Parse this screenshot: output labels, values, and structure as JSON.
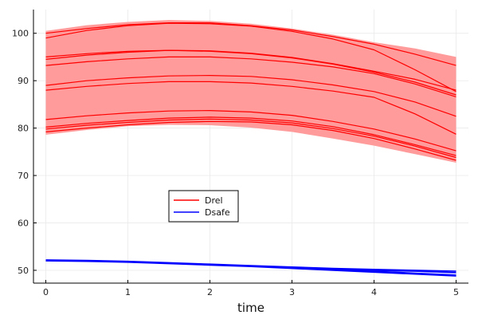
{
  "chart_data": {
    "type": "line",
    "xlabel": "time",
    "ylabel": "",
    "xlim": [
      -0.15,
      5.15
    ],
    "ylim": [
      47.3,
      105
    ],
    "xticks": [
      "0",
      "1",
      "2",
      "3",
      "4",
      "5"
    ],
    "yticks": [
      "50",
      "60",
      "70",
      "80",
      "90",
      "100"
    ],
    "grid": true,
    "legend_position": "middle-left",
    "band": {
      "name": "Drel range",
      "color": "#ff9b9b",
      "x": [
        0,
        0.5,
        1,
        1.5,
        2,
        2.5,
        3,
        3.5,
        4,
        4.5,
        5
      ],
      "upper": [
        100.5,
        101.7,
        102.4,
        102.8,
        102.6,
        102.0,
        101.0,
        99.7,
        98.1,
        96.8,
        95.0
      ],
      "lower": [
        78.6,
        79.6,
        80.4,
        80.7,
        80.6,
        80.1,
        79.2,
        77.8,
        76.3,
        74.5,
        72.7
      ]
    },
    "series": [
      {
        "name": "Drel",
        "color": "#ff0000",
        "values": [
          99.0,
          100.6,
          101.6,
          102.1,
          102.0,
          101.5,
          100.4,
          98.8,
          96.5,
          92.3,
          87.7
        ]
      },
      {
        "color": "#ff0000",
        "values": [
          100.0,
          101.0,
          101.8,
          102.2,
          102.2,
          101.6,
          100.7,
          99.3,
          97.7,
          95.6,
          93.2
        ]
      },
      {
        "color": "#ff0000",
        "values": [
          95.0,
          95.7,
          96.2,
          96.4,
          96.2,
          95.7,
          94.8,
          93.5,
          91.8,
          89.7,
          87.0
        ]
      },
      {
        "color": "#ff0000",
        "values": [
          94.5,
          95.4,
          96.0,
          96.4,
          96.3,
          95.8,
          94.9,
          93.6,
          92.0,
          90.3,
          88.0
        ]
      },
      {
        "color": "#ff0000",
        "values": [
          93.2,
          94.0,
          94.6,
          95.0,
          95.0,
          94.6,
          93.9,
          92.9,
          91.5,
          89.3,
          86.6
        ]
      },
      {
        "color": "#ff0000",
        "values": [
          89.0,
          90.0,
          90.6,
          91.0,
          91.1,
          90.9,
          90.2,
          89.1,
          87.7,
          85.5,
          82.5
        ]
      },
      {
        "color": "#ff0000",
        "values": [
          88.0,
          88.8,
          89.4,
          89.8,
          89.8,
          89.5,
          88.8,
          87.8,
          86.5,
          83.0,
          78.7
        ]
      },
      {
        "color": "#ff0000",
        "values": [
          81.8,
          82.6,
          83.2,
          83.6,
          83.7,
          83.4,
          82.7,
          81.4,
          79.8,
          77.7,
          75.2
        ]
      },
      {
        "color": "#ff0000",
        "values": [
          80.2,
          81.0,
          81.6,
          82.1,
          82.3,
          82.1,
          81.5,
          80.3,
          78.6,
          76.5,
          74.2
        ]
      },
      {
        "color": "#ff0000",
        "values": [
          79.8,
          80.6,
          81.2,
          81.7,
          81.9,
          81.7,
          81.1,
          79.9,
          78.3,
          76.2,
          73.8
        ]
      },
      {
        "color": "#ff0000",
        "values": [
          79.2,
          80.0,
          80.7,
          81.2,
          81.4,
          81.3,
          80.7,
          79.5,
          77.8,
          75.6,
          73.2
        ]
      },
      {
        "name": "Dsafe",
        "color": "#0000ff",
        "values": [
          52.1,
          52.0,
          51.8,
          51.5,
          51.2,
          50.9,
          50.6,
          50.3,
          50.0,
          49.8,
          49.5
        ]
      },
      {
        "color": "#0000ff",
        "values": [
          52.2,
          52.1,
          51.9,
          51.6,
          51.3,
          51.0,
          50.7,
          50.4,
          50.2,
          50.0,
          49.8
        ]
      },
      {
        "color": "#0000ff",
        "values": [
          52.0,
          51.9,
          51.7,
          51.4,
          51.1,
          50.8,
          50.4,
          50.0,
          49.6,
          49.2,
          48.8
        ]
      },
      {
        "color": "#0000ff",
        "values": [
          52.1,
          52.0,
          51.8,
          51.5,
          51.2,
          50.9,
          50.5,
          50.2,
          49.8,
          49.4,
          49.0
        ]
      }
    ],
    "legend": [
      {
        "label": "Drel",
        "color": "#ff0000"
      },
      {
        "label": "Dsafe",
        "color": "#0000ff"
      }
    ]
  }
}
